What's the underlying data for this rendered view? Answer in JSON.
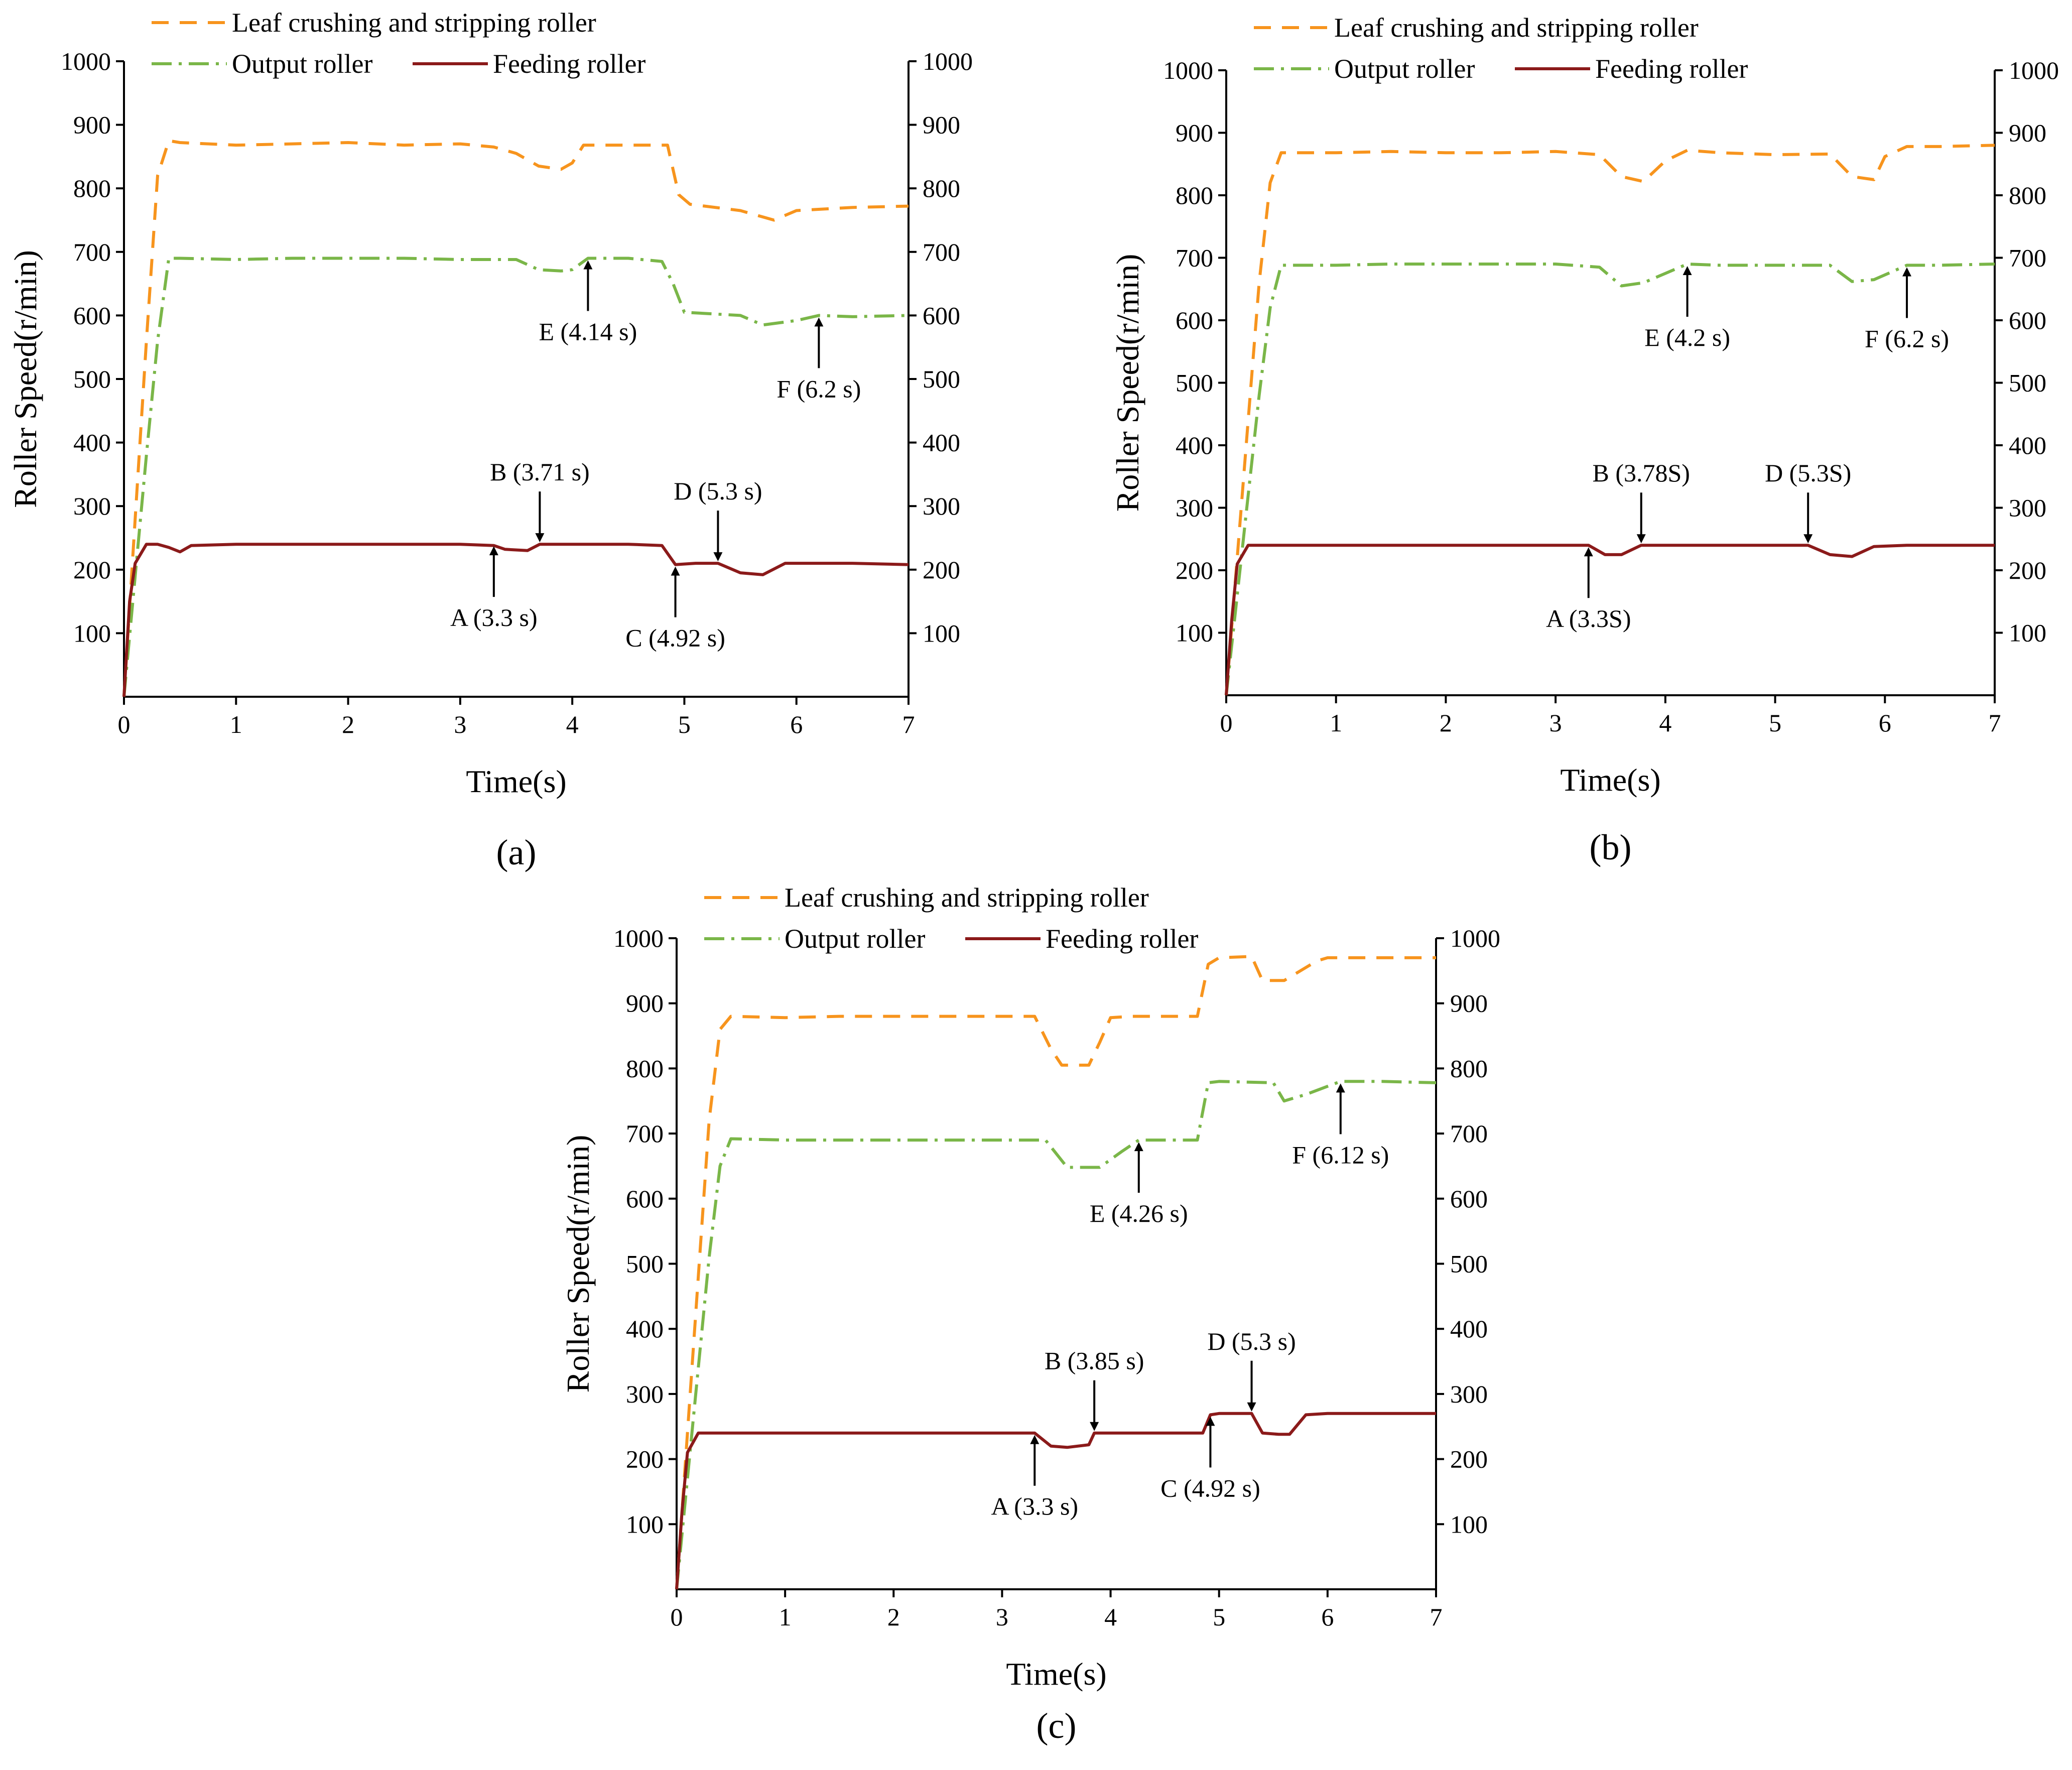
{
  "figure": {
    "colors": {
      "leaf": "#F7941D",
      "output": "#7AB648",
      "feeding": "#8B1A1A",
      "axis": "#000000"
    },
    "panel_labels": [
      "(a)",
      "(b)",
      "(c)"
    ]
  },
  "chart_data": [
    {
      "type": "line",
      "panel": "(a)",
      "xlabel": "Time(s)",
      "ylabel": "Roller Speed(r/min)",
      "xlim": [
        0,
        7
      ],
      "ylim": [
        0,
        1000
      ],
      "x_ticks": [
        "0",
        "1",
        "2",
        "3",
        "4",
        "5",
        "6",
        "7"
      ],
      "y_ticks": [
        "100",
        "200",
        "300",
        "400",
        "500",
        "600",
        "700",
        "800",
        "900",
        "1000"
      ],
      "legend": [
        "Leaf crushing and stripping roller",
        "Output roller",
        "Feeding roller"
      ],
      "series": [
        {
          "name": "Leaf crushing and stripping roller",
          "style": "dashed",
          "x": [
            0,
            0.1,
            0.2,
            0.3,
            0.4,
            0.5,
            1,
            1.5,
            2,
            2.5,
            3,
            3.3,
            3.5,
            3.7,
            3.9,
            4.0,
            4.1,
            4.5,
            4.85,
            4.95,
            5.05,
            5.5,
            5.8,
            6.0,
            6.5,
            7.0
          ],
          "y": [
            0,
            280,
            560,
            820,
            875,
            872,
            868,
            870,
            872,
            868,
            870,
            865,
            855,
            835,
            830,
            840,
            868,
            868,
            868,
            790,
            775,
            765,
            750,
            765,
            770,
            772
          ]
        },
        {
          "name": "Output roller",
          "style": "dashdot",
          "x": [
            0,
            0.1,
            0.2,
            0.3,
            0.4,
            0.5,
            1,
            1.5,
            2,
            2.5,
            3,
            3.5,
            3.7,
            3.9,
            4.0,
            4.14,
            4.5,
            4.8,
            4.9,
            5.0,
            5.5,
            5.7,
            6.0,
            6.2,
            6.5,
            7.0
          ],
          "y": [
            0,
            190,
            380,
            560,
            690,
            690,
            688,
            690,
            690,
            690,
            688,
            688,
            672,
            670,
            672,
            690,
            690,
            685,
            650,
            605,
            600,
            585,
            592,
            600,
            598,
            600
          ]
        },
        {
          "name": "Feeding roller",
          "style": "solid",
          "x": [
            0,
            0.05,
            0.1,
            0.2,
            0.3,
            0.4,
            0.5,
            0.6,
            1,
            1.5,
            2,
            2.5,
            3,
            3.3,
            3.4,
            3.6,
            3.71,
            3.9,
            4.2,
            4.5,
            4.8,
            4.92,
            5.1,
            5.3,
            5.5,
            5.7,
            5.9,
            6.5,
            7.0
          ],
          "y": [
            0,
            150,
            210,
            240,
            240,
            235,
            228,
            238,
            240,
            240,
            240,
            240,
            240,
            238,
            232,
            230,
            240,
            240,
            240,
            240,
            238,
            208,
            210,
            210,
            195,
            192,
            210,
            210,
            208
          ]
        }
      ],
      "annotations": [
        {
          "label": "A (3.3 s)",
          "x": 3.3,
          "y": 240,
          "dir": "up"
        },
        {
          "label": "B (3.71 s)",
          "x": 3.71,
          "y": 240,
          "dir": "down"
        },
        {
          "label": "C (4.92 s)",
          "x": 4.92,
          "y": 208,
          "dir": "up"
        },
        {
          "label": "D (5.3 s)",
          "x": 5.3,
          "y": 210,
          "dir": "down"
        },
        {
          "label": "E (4.14 s)",
          "x": 4.14,
          "y": 690,
          "dir": "up"
        },
        {
          "label": "F (6.2 s)",
          "x": 6.2,
          "y": 600,
          "dir": "up"
        }
      ]
    },
    {
      "type": "line",
      "panel": "(b)",
      "xlabel": "Time(s)",
      "ylabel": "Roller Speed(r/min)",
      "xlim": [
        0,
        7
      ],
      "ylim": [
        0,
        1000
      ],
      "x_ticks": [
        "0",
        "1",
        "2",
        "3",
        "4",
        "5",
        "6",
        "7"
      ],
      "y_ticks": [
        "100",
        "200",
        "300",
        "400",
        "500",
        "600",
        "700",
        "800",
        "900",
        "1000"
      ],
      "legend": [
        "Leaf crushing and stripping roller",
        "Output roller",
        "Feeding roller"
      ],
      "series": [
        {
          "name": "Leaf crushing and stripping roller",
          "style": "dashed",
          "x": [
            0,
            0.1,
            0.2,
            0.3,
            0.4,
            0.5,
            1,
            1.5,
            2,
            2.5,
            3,
            3.4,
            3.6,
            3.8,
            4.0,
            4.2,
            4.5,
            5.0,
            5.5,
            5.7,
            5.9,
            6.0,
            6.2,
            6.5,
            7.0
          ],
          "y": [
            0,
            220,
            440,
            660,
            820,
            868,
            868,
            870,
            868,
            868,
            870,
            865,
            830,
            822,
            855,
            872,
            868,
            865,
            866,
            830,
            825,
            862,
            878,
            878,
            880
          ]
        },
        {
          "name": "Output roller",
          "style": "dashdot",
          "x": [
            0,
            0.1,
            0.2,
            0.3,
            0.4,
            0.5,
            1,
            1.5,
            2,
            2.5,
            3,
            3.4,
            3.6,
            3.8,
            4.0,
            4.2,
            4.5,
            5.0,
            5.5,
            5.7,
            5.9,
            6.2,
            6.5,
            7.0
          ],
          "y": [
            0,
            160,
            320,
            480,
            620,
            688,
            688,
            690,
            690,
            690,
            690,
            685,
            655,
            660,
            675,
            690,
            688,
            688,
            688,
            662,
            665,
            688,
            688,
            690
          ]
        },
        {
          "name": "Feeding roller",
          "style": "solid",
          "x": [
            0,
            0.05,
            0.1,
            0.2,
            0.3,
            1,
            1.5,
            2,
            2.5,
            3,
            3.3,
            3.45,
            3.6,
            3.78,
            4.0,
            4.5,
            5.0,
            5.3,
            5.5,
            5.7,
            5.9,
            6.2,
            6.5,
            7.0
          ],
          "y": [
            0,
            120,
            210,
            240,
            240,
            240,
            240,
            240,
            240,
            240,
            240,
            225,
            225,
            240,
            240,
            240,
            240,
            240,
            225,
            222,
            238,
            240,
            240,
            240
          ]
        }
      ],
      "annotations": [
        {
          "label": "A (3.3S)",
          "x": 3.3,
          "y": 240,
          "dir": "up"
        },
        {
          "label": "B (3.78S)",
          "x": 3.78,
          "y": 240,
          "dir": "down"
        },
        {
          "label": "D (5.3S)",
          "x": 5.3,
          "y": 240,
          "dir": "down"
        },
        {
          "label": "E (4.2 s)",
          "x": 4.2,
          "y": 690,
          "dir": "up"
        },
        {
          "label": "F (6.2 s)",
          "x": 6.2,
          "y": 688,
          "dir": "up"
        }
      ]
    },
    {
      "type": "line",
      "panel": "(c)",
      "xlabel": "Time(s)",
      "ylabel": "Roller Speed(r/min)",
      "xlim": [
        0,
        7
      ],
      "ylim": [
        0,
        1000
      ],
      "x_ticks": [
        "0",
        "1",
        "2",
        "3",
        "4",
        "5",
        "6",
        "7"
      ],
      "y_ticks": [
        "100",
        "200",
        "300",
        "400",
        "500",
        "600",
        "700",
        "800",
        "900",
        "1000"
      ],
      "legend": [
        "Leaf crushing and stripping roller",
        "Output roller",
        "Feeding roller"
      ],
      "series": [
        {
          "name": "Leaf crushing and stripping roller",
          "style": "dashed",
          "x": [
            0,
            0.1,
            0.2,
            0.3,
            0.4,
            0.5,
            1,
            1.5,
            2,
            2.5,
            3,
            3.3,
            3.45,
            3.55,
            3.8,
            3.9,
            4.0,
            4.2,
            4.5,
            4.8,
            4.9,
            5.0,
            5.3,
            5.4,
            5.6,
            5.9,
            6.0,
            6.5,
            7.0
          ],
          "y": [
            0,
            240,
            480,
            720,
            860,
            880,
            878,
            880,
            880,
            880,
            880,
            880,
            830,
            805,
            805,
            840,
            878,
            880,
            880,
            880,
            960,
            970,
            972,
            935,
            935,
            965,
            970,
            970,
            970
          ]
        },
        {
          "name": "Output roller",
          "style": "dashdot",
          "x": [
            0,
            0.1,
            0.2,
            0.3,
            0.4,
            0.5,
            1,
            1.5,
            2,
            2.5,
            3,
            3.4,
            3.6,
            3.9,
            4.1,
            4.26,
            4.5,
            4.8,
            4.9,
            5.0,
            5.5,
            5.6,
            5.8,
            6.12,
            6.5,
            7.0
          ],
          "y": [
            0,
            170,
            340,
            510,
            650,
            692,
            690,
            690,
            690,
            690,
            690,
            690,
            648,
            648,
            672,
            690,
            690,
            690,
            778,
            780,
            778,
            750,
            760,
            780,
            780,
            778
          ]
        },
        {
          "name": "Feeding roller",
          "style": "solid",
          "x": [
            0,
            0.05,
            0.1,
            0.2,
            0.3,
            1,
            1.5,
            2,
            2.5,
            3,
            3.3,
            3.45,
            3.6,
            3.8,
            3.85,
            4.0,
            4.5,
            4.85,
            4.92,
            5.0,
            5.3,
            5.4,
            5.55,
            5.65,
            5.8,
            6.0,
            6.5,
            7.0
          ],
          "y": [
            0,
            120,
            210,
            240,
            240,
            240,
            240,
            240,
            240,
            240,
            240,
            220,
            218,
            222,
            240,
            240,
            240,
            240,
            268,
            270,
            270,
            240,
            238,
            238,
            268,
            270,
            270,
            270
          ]
        }
      ],
      "annotations": [
        {
          "label": "A (3.3 s)",
          "x": 3.3,
          "y": 240,
          "dir": "up"
        },
        {
          "label": "B (3.85 s)",
          "x": 3.85,
          "y": 240,
          "dir": "down"
        },
        {
          "label": "C (4.92 s)",
          "x": 4.92,
          "y": 268,
          "dir": "up"
        },
        {
          "label": "D (5.3 s)",
          "x": 5.3,
          "y": 270,
          "dir": "down"
        },
        {
          "label": "E (4.26 s)",
          "x": 4.26,
          "y": 690,
          "dir": "up"
        },
        {
          "label": "F (6.12 s)",
          "x": 6.12,
          "y": 780,
          "dir": "up"
        }
      ]
    }
  ]
}
